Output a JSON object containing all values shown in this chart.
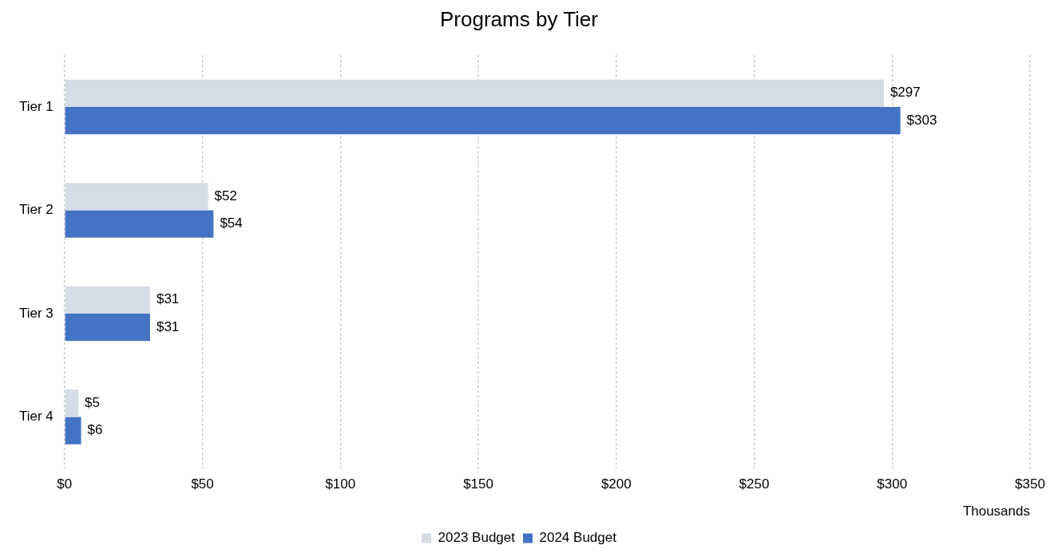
{
  "chart_data": {
    "type": "bar",
    "title": "Programs by Tier",
    "orientation": "horizontal",
    "categories": [
      "Tier 1",
      "Tier 2",
      "Tier 3",
      "Tier 4"
    ],
    "series": [
      {
        "name": "2023 Budget",
        "color": "#d6dce5",
        "values": [
          297,
          52,
          31,
          5
        ],
        "value_labels": [
          "$297",
          "$52",
          "$31",
          "$5"
        ]
      },
      {
        "name": "2024 Budget",
        "color": "#4472c4",
        "values": [
          303,
          54,
          31,
          6
        ],
        "value_labels": [
          "$303",
          "$54",
          "$31",
          "$6"
        ]
      }
    ],
    "xlim": [
      0,
      350
    ],
    "xticks": [
      {
        "value": 0,
        "label": "$0"
      },
      {
        "value": 50,
        "label": "$50"
      },
      {
        "value": 100,
        "label": "$100"
      },
      {
        "value": 150,
        "label": "$150"
      },
      {
        "value": 200,
        "label": "$200"
      },
      {
        "value": 250,
        "label": "$250"
      },
      {
        "value": 300,
        "label": "$300"
      },
      {
        "value": 350,
        "label": "$350"
      }
    ],
    "xlabel": "Thousands",
    "grid": "x",
    "legend": "bottom"
  }
}
